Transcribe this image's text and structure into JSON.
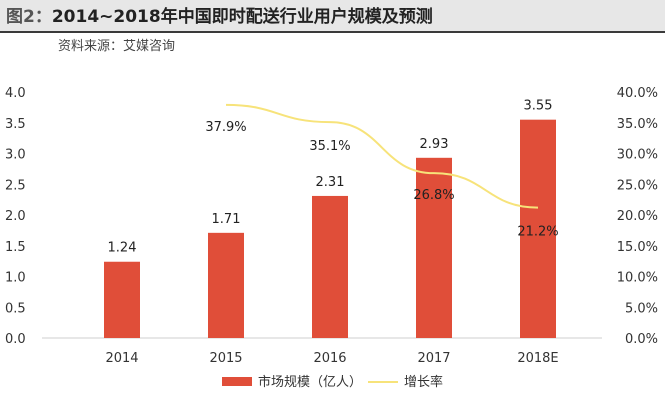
{
  "header": {
    "figure_label": "图2：",
    "title": "2014~2018年中国即时配送行业用户规模及预测",
    "source": "资料来源：艾媒咨询"
  },
  "chart_data": {
    "type": "bar",
    "categories": [
      "2014",
      "2015",
      "2016",
      "2017",
      "2018E"
    ],
    "series": [
      {
        "name": "市场规模（亿人）",
        "type": "bar",
        "axis": "left",
        "color": "#e04e39",
        "values": [
          1.24,
          1.71,
          2.31,
          2.93,
          3.55
        ],
        "labels": [
          "1.24",
          "1.71",
          "2.31",
          "2.93",
          "3.55"
        ]
      },
      {
        "name": "增长率",
        "type": "line",
        "axis": "right",
        "color": "#f7e37a",
        "values": [
          null,
          37.9,
          35.1,
          26.8,
          21.2
        ],
        "labels": [
          "",
          "37.9%",
          "35.1%",
          "26.8%",
          "21.2%"
        ]
      }
    ],
    "y_left": {
      "ylim": [
        0,
        4
      ],
      "ticks": [
        0,
        0.5,
        1,
        1.5,
        2,
        2.5,
        3,
        3.5,
        4
      ],
      "tick_labels": [
        "0.0",
        "0.5",
        "1.0",
        "1.5",
        "2.0",
        "2.5",
        "3.0",
        "3.5",
        "4.0"
      ]
    },
    "y_right": {
      "ylim": [
        0,
        40
      ],
      "ticks": [
        0,
        5,
        10,
        15,
        20,
        25,
        30,
        35,
        40
      ],
      "tick_labels": [
        "0.0%",
        "5.0%",
        "10.0%",
        "15.0%",
        "20.0%",
        "25.0%",
        "30.0%",
        "35.0%",
        "40.0%"
      ]
    },
    "grid": false,
    "legend_position": "bottom-center"
  }
}
